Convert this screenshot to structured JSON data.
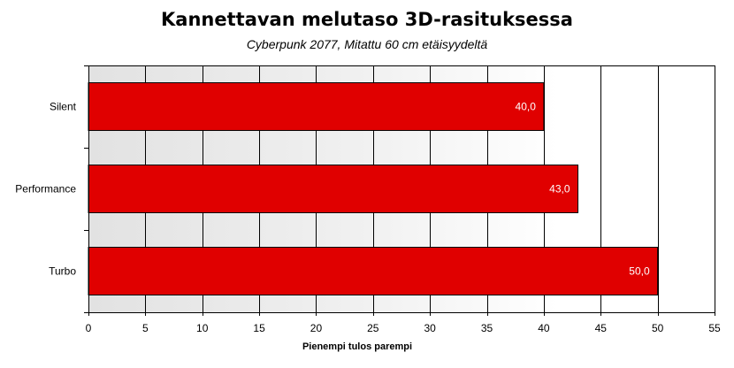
{
  "chart_data": {
    "type": "bar",
    "orientation": "horizontal",
    "title": "Kannettavan melutaso 3D-rasituksessa",
    "subtitle": "Cyberpunk 2077, Mitattu 60 cm etäisyydeltä",
    "xlabel": "Pienempi tulos parempi",
    "ylabel": "",
    "categories": [
      "Silent",
      "Performance",
      "Turbo"
    ],
    "values": [
      40.0,
      43.0,
      50.0
    ],
    "value_labels": [
      "40,0",
      "43,0",
      "50,0"
    ],
    "xlim": [
      0,
      55
    ],
    "xticks": [
      0,
      5,
      10,
      15,
      20,
      25,
      30,
      35,
      40,
      45,
      50,
      55
    ],
    "grid": true,
    "bar_color": "#e00000",
    "plot_background": "gradient light gray to white"
  }
}
